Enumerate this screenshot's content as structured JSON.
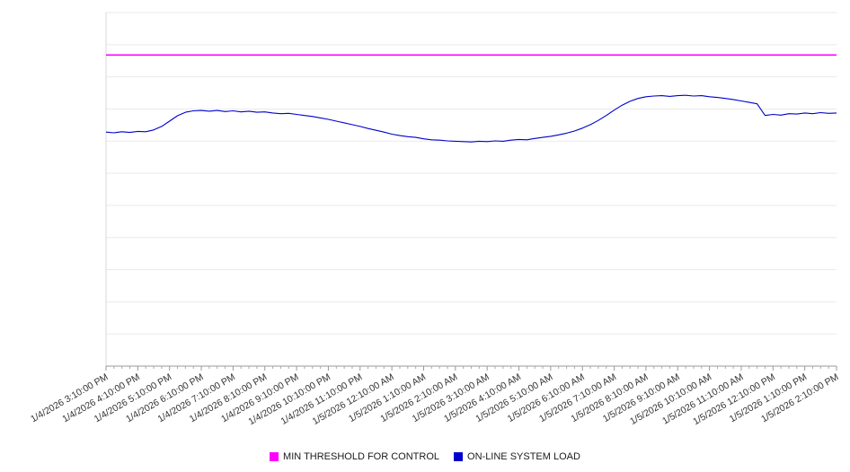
{
  "chart_data": {
    "type": "line",
    "title": "",
    "xlabel": "",
    "ylabel": "",
    "y_axis_labels_visible": false,
    "ylim": [
      0,
      100
    ],
    "grid": "horizontal",
    "legend_position": "bottom",
    "x_span_hours": 23,
    "x_tick_labels": [
      "1/4/2026 3:10:00 PM",
      "1/4/2026 4:10:00 PM",
      "1/4/2026 5:10:00 PM",
      "1/4/2026 6:10:00 PM",
      "1/4/2026 7:10:00 PM",
      "1/4/2026 8:10:00 PM",
      "1/4/2026 9:10:00 PM",
      "1/4/2026 10:10:00 PM",
      "1/4/2026 11:10:00 PM",
      "1/5/2026 12:10:00 AM",
      "1/5/2026 1:10:00 AM",
      "1/5/2026 2:10:00 AM",
      "1/5/2026 3:10:00 AM",
      "1/5/2026 4:10:00 AM",
      "1/5/2026 5:10:00 AM",
      "1/5/2026 6:10:00 AM",
      "1/5/2026 7:10:00 AM",
      "1/5/2026 8:10:00 AM",
      "1/5/2026 9:10:00 AM",
      "1/5/2026 10:10:00 AM",
      "1/5/2026 11:10:00 AM",
      "1/5/2026 12:10:00 PM",
      "1/5/2026 1:10:00 PM",
      "1/5/2026 2:10:00 PM"
    ],
    "series": [
      {
        "name": "MIN THRESHOLD FOR CONTROL",
        "color": "#ff00ff",
        "type": "constant",
        "value": 88
      },
      {
        "name": "ON-LINE SYSTEM LOAD",
        "color": "#0000cd",
        "type": "line",
        "interval_hours": 0.25,
        "values": [
          66.2,
          66.0,
          66.3,
          66.1,
          66.4,
          66.3,
          66.8,
          67.8,
          69.3,
          70.8,
          71.8,
          72.2,
          72.3,
          72.1,
          72.3,
          72.0,
          72.2,
          71.9,
          72.1,
          71.8,
          71.9,
          71.6,
          71.4,
          71.5,
          71.2,
          70.9,
          70.6,
          70.2,
          69.8,
          69.3,
          68.8,
          68.3,
          67.8,
          67.2,
          66.7,
          66.2,
          65.6,
          65.2,
          64.9,
          64.7,
          64.3,
          64.0,
          63.9,
          63.7,
          63.6,
          63.5,
          63.4,
          63.6,
          63.5,
          63.7,
          63.6,
          63.9,
          64.1,
          64.0,
          64.4,
          64.7,
          65.0,
          65.4,
          65.9,
          66.5,
          67.3,
          68.3,
          69.5,
          70.9,
          72.4,
          73.8,
          74.9,
          75.7,
          76.2,
          76.4,
          76.5,
          76.3,
          76.5,
          76.6,
          76.4,
          76.5,
          76.2,
          76.0,
          75.7,
          75.4,
          75.0,
          74.6,
          74.2,
          70.9,
          71.2,
          71.0,
          71.4,
          71.3,
          71.6,
          71.4,
          71.7,
          71.5,
          71.6
        ]
      }
    ]
  }
}
